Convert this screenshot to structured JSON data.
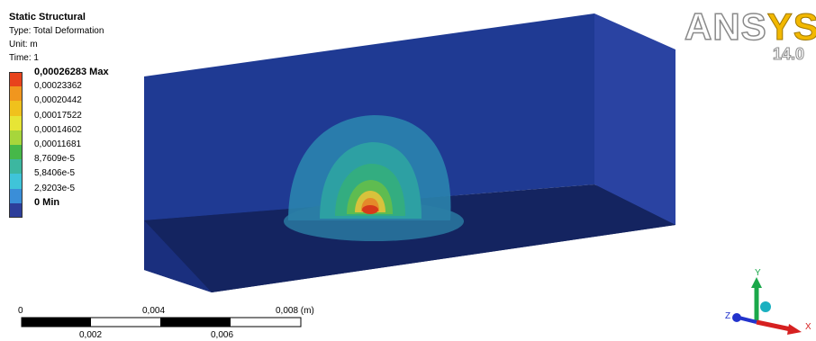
{
  "header": {
    "title": "Static Structural",
    "type_line": "Type: Total Deformation",
    "unit_line": "Unit: m",
    "time_line": "Time: 1"
  },
  "legend": [
    {
      "label": "0,00026283 Max",
      "color": "#e8431c",
      "bold": true
    },
    {
      "label": "0,00023362",
      "color": "#f1961e",
      "bold": false
    },
    {
      "label": "0,00020442",
      "color": "#f0c11c",
      "bold": false
    },
    {
      "label": "0,00017522",
      "color": "#e7e535",
      "bold": false
    },
    {
      "label": "0,00014602",
      "color": "#a7d63b",
      "bold": false
    },
    {
      "label": "0,00011681",
      "color": "#46b849",
      "bold": false
    },
    {
      "label": "8,7609e-5",
      "color": "#3cb7a0",
      "bold": false
    },
    {
      "label": "5,8406e-5",
      "color": "#3fc4d9",
      "bold": false
    },
    {
      "label": "2,9203e-5",
      "color": "#3a8ed8",
      "bold": false
    },
    {
      "label": "0 Min",
      "color": "#2d3e9a",
      "bold": true
    }
  ],
  "logo": {
    "ans": "ANS",
    "sys": "YS",
    "version": "14.0"
  },
  "scale_bar": {
    "top_labels": [
      "0",
      "0,004",
      "0,008 (m)"
    ],
    "bottom_labels": [
      "0,002",
      "0,006"
    ]
  },
  "triad": {
    "y_label": "Y",
    "z_label": "Z",
    "x_label": "X",
    "colors": {
      "y": "#1aa84a",
      "z": "#2233cc",
      "x": "#d62020",
      "center": "#1bb0c0"
    }
  },
  "model_colors": {
    "block_front": "#1f3a93",
    "block_top": "#2f46a4",
    "block_side": "#2a43a2",
    "floor": "#17296b",
    "contour_outer": "#2e8fb0",
    "contour_mid": "#2fa6a0",
    "contour_inner": "#35b07a",
    "contour_core": "#6cbf4a",
    "hot_spot": "#d63a1a"
  }
}
